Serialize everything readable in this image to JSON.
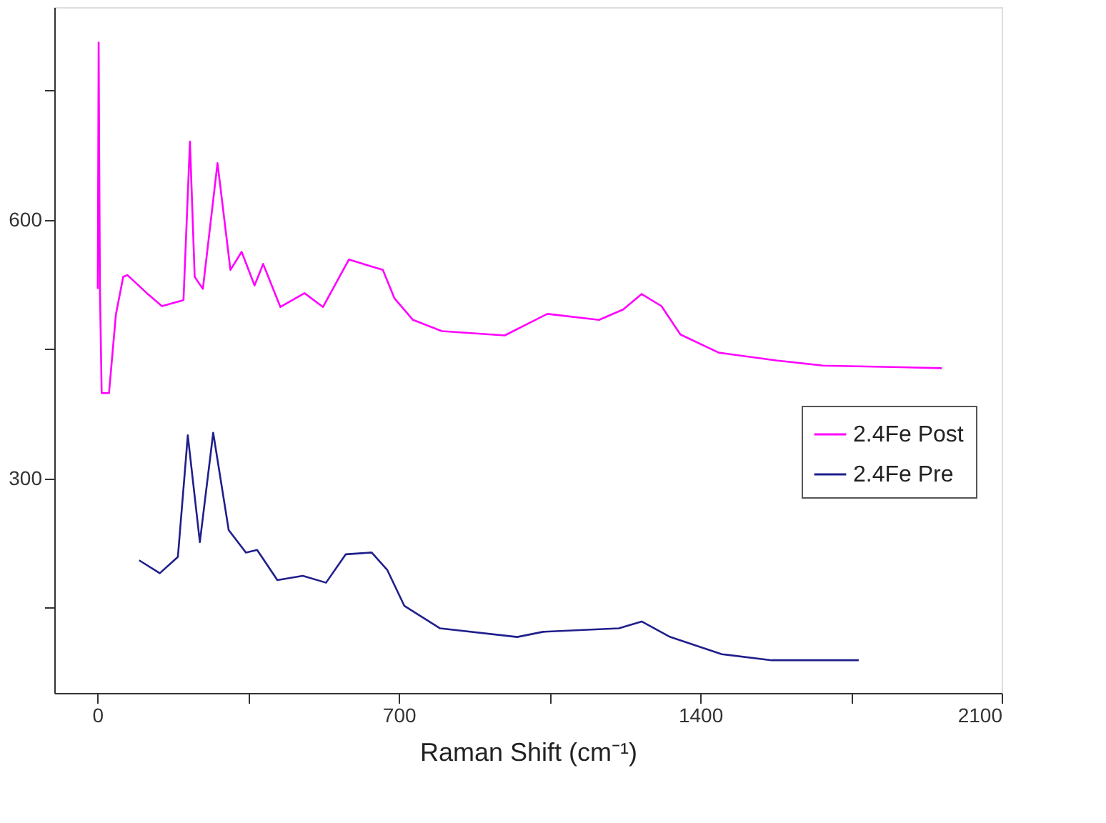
{
  "chart_data": {
    "type": "line",
    "xlabel": "Raman Shift (cm⁻¹)",
    "xlim": [
      -100,
      2100
    ],
    "ylim": [
      51,
      847
    ],
    "xticks": [
      0,
      {
        "value": 350,
        "label": null
      },
      700,
      {
        "value": 1050,
        "label": null
      },
      1400,
      {
        "value": 1750,
        "label": null
      },
      2100
    ],
    "yticks": [
      {
        "value": 150,
        "label": null
      },
      300,
      {
        "value": 450,
        "label": null
      },
      600,
      {
        "value": 750,
        "label": null
      }
    ],
    "grid": false,
    "legend": "right",
    "line_style": "solid",
    "marker": "none",
    "series": [
      {
        "name": "2.4Fe Post",
        "color": "#ff00ff",
        "x": [
          1,
          3,
          4,
          6,
          10,
          27,
          43,
          60,
          70,
          115,
          150,
          200,
          215,
          226,
          245,
          279,
          309,
          335,
          365,
          385,
          425,
          481,
          524,
          584,
          663,
          690,
          733,
          800,
          946,
          1045,
          1165,
          1221,
          1264,
          1310,
          1354,
          1443,
          1576,
          1685,
          1961
        ],
        "values": [
          520,
          806,
          700,
          520,
          399,
          399,
          490,
          534,
          536,
          515,
          500,
          507,
          691,
          534,
          520,
          666,
          542,
          563,
          524,
          549,
          499,
          515,
          499,
          554,
          542,
          509,
          484,
          471,
          466,
          491,
          484,
          496,
          514,
          500,
          467,
          446,
          437,
          431,
          428
        ]
      },
      {
        "name": "2.4Fe Pre",
        "color": "#1f1f8c",
        "x": [
          97,
          145,
          187,
          210,
          238,
          269,
          305,
          345,
          371,
          418,
          477,
          531,
          577,
          637,
          673,
          713,
          796,
          975,
          1035,
          1211,
          1264,
          1330,
          1450,
          1566,
          1768
        ],
        "values": [
          205,
          190,
          209,
          350,
          226,
          353,
          240,
          214,
          217,
          182,
          187,
          179,
          212,
          214,
          194,
          152,
          126,
          116,
          122,
          126,
          134,
          116,
          96,
          89,
          89
        ]
      }
    ]
  }
}
